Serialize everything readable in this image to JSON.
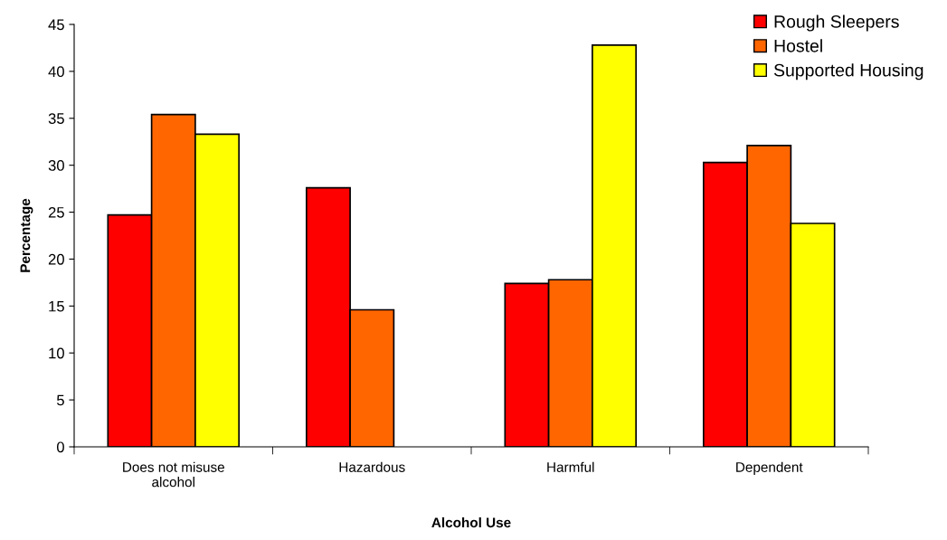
{
  "chart_data": {
    "type": "bar",
    "xlabel": "Alcohol Use",
    "ylabel": "Percentage",
    "categories": [
      "Does not misuse\nalcohol",
      "Hazardous",
      "Harmful",
      "Dependent"
    ],
    "series": [
      {
        "name": "Rough Sleepers",
        "color": "#ff0000",
        "values": [
          24.7,
          27.6,
          17.4,
          30.3
        ]
      },
      {
        "name": "Hostel",
        "color": "#ff6600",
        "values": [
          35.4,
          14.6,
          17.8,
          32.1
        ]
      },
      {
        "name": "Supported Housing",
        "color": "#ffff00",
        "values": [
          33.3,
          null,
          42.8,
          23.8
        ]
      }
    ],
    "ylim": [
      0,
      45
    ],
    "yticks": [
      0,
      5,
      10,
      15,
      20,
      25,
      30,
      35,
      40,
      45
    ],
    "grid": false,
    "legend": "top right"
  }
}
